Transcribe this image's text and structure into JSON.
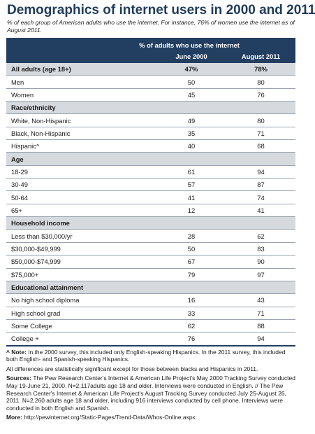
{
  "title": "Demographics of internet users in 2000 and 2011",
  "subtitle": "% of each group of American adults who use the internet. For instance, 76% of women use the internet as of August 2011.",
  "header": {
    "group_label": "% of adults who use the internet",
    "col1": "June 2000",
    "col2": "August 2011"
  },
  "overall": {
    "label": "All adults (age 18+)",
    "v1": "47%",
    "v2": "78%"
  },
  "rows": [
    {
      "kind": "data",
      "label": "Men",
      "v1": "50",
      "v2": "80"
    },
    {
      "kind": "data",
      "label": "Women",
      "v1": "45",
      "v2": "76"
    },
    {
      "kind": "section",
      "label": "Race/ethnicity"
    },
    {
      "kind": "data",
      "label": "White, Non-Hispanic",
      "v1": "49",
      "v2": "80"
    },
    {
      "kind": "data",
      "label": "Black, Non-Hispanic",
      "v1": "35",
      "v2": "71"
    },
    {
      "kind": "data",
      "label": "Hispanic^",
      "v1": "40",
      "v2": "68"
    },
    {
      "kind": "section",
      "label": "Age"
    },
    {
      "kind": "data",
      "label": "18-29",
      "v1": "61",
      "v2": "94"
    },
    {
      "kind": "data",
      "label": "30-49",
      "v1": "57",
      "v2": "87"
    },
    {
      "kind": "data",
      "label": "50-64",
      "v1": "41",
      "v2": "74"
    },
    {
      "kind": "data",
      "label": "65+",
      "v1": "12",
      "v2": "41"
    },
    {
      "kind": "section",
      "label": "Household income"
    },
    {
      "kind": "data",
      "label": "Less than $30,000/yr",
      "v1": "28",
      "v2": "62"
    },
    {
      "kind": "data",
      "label": "$30,000-$49,999",
      "v1": "50",
      "v2": "83"
    },
    {
      "kind": "data",
      "label": "$50,000-$74,999",
      "v1": "67",
      "v2": "90"
    },
    {
      "kind": "data",
      "label": "$75,000+",
      "v1": "79",
      "v2": "97"
    },
    {
      "kind": "section",
      "label": "Educational attainment"
    },
    {
      "kind": "data",
      "label": "No high school diploma",
      "v1": "16",
      "v2": "43"
    },
    {
      "kind": "data",
      "label": "High school grad",
      "v1": "33",
      "v2": "71"
    },
    {
      "kind": "data",
      "label": "Some College",
      "v1": "62",
      "v2": "88"
    },
    {
      "kind": "data",
      "label": "College +",
      "v1": "76",
      "v2": "94"
    }
  ],
  "notes": {
    "note_label": "^ Note:",
    "note_text": "In the 2000 survey, this included only English-speaking Hispanics. In the 2011 survey, this included both English- and Spanish-speaking Hispanics.",
    "significance": "All differences are statistically significant except for those between blacks and Hispanics in 2011.",
    "sources_label": "Sources:",
    "sources_text": "The Pew Research Center's Internet & American Life Project's May 2000 Tracking Survey conducted May 19-June 21, 2000. N=2,117adults age 18 and older. Interviews were conducted in English. // The Pew Research Center's Internet & American Life Project's August Tracking Survey conducted July 25-August 26, 2011. N=2,260 adults age 18 and older, including 916 interviews conducted by cell phone. Interviews were conducted in both English and Spanish.",
    "more_label": "More:",
    "more_text": "http://pewinternet.org/Static-Pages/Trend-Data/Whos-Online.aspx"
  }
}
